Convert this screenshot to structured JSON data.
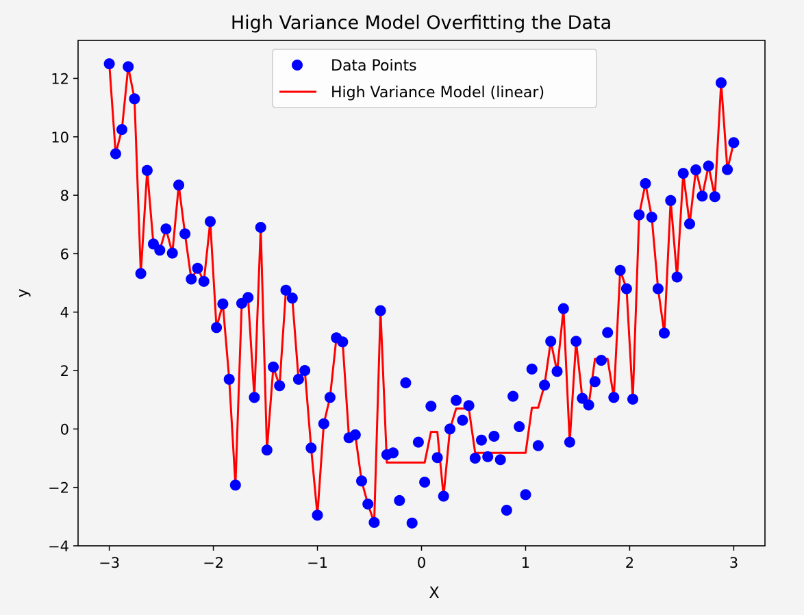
{
  "chart_data": {
    "type": "scatter",
    "title": "High Variance Model Overfitting the Data",
    "xlabel": "X",
    "ylabel": "y",
    "xlim": [
      -3.3,
      3.3
    ],
    "ylim": [
      -4,
      13.3
    ],
    "xticks": [
      -3,
      -2,
      -1,
      0,
      1,
      2,
      3
    ],
    "xtick_labels": [
      "−3",
      "−2",
      "−1",
      "0",
      "1",
      "2",
      "3"
    ],
    "yticks": [
      -4,
      -2,
      0,
      2,
      4,
      6,
      8,
      10,
      12
    ],
    "ytick_labels": [
      "−4",
      "−2",
      "0",
      "2",
      "4",
      "6",
      "8",
      "10",
      "12"
    ],
    "grid": false,
    "legend_position": "top-center",
    "x": [
      -3.0,
      -2.939,
      -2.879,
      -2.818,
      -2.758,
      -2.697,
      -2.636,
      -2.576,
      -2.515,
      -2.455,
      -2.394,
      -2.333,
      -2.273,
      -2.212,
      -2.152,
      -2.091,
      -2.03,
      -1.97,
      -1.909,
      -1.848,
      -1.788,
      -1.727,
      -1.667,
      -1.606,
      -1.545,
      -1.485,
      -1.424,
      -1.364,
      -1.303,
      -1.242,
      -1.182,
      -1.121,
      -1.061,
      -1.0,
      -0.939,
      -0.879,
      -0.818,
      -0.758,
      -0.697,
      -0.636,
      -0.576,
      -0.515,
      -0.455,
      -0.394,
      -0.333,
      -0.273,
      -0.212,
      -0.152,
      -0.091,
      -0.03,
      0.03,
      0.091,
      0.152,
      0.212,
      0.273,
      0.333,
      0.394,
      0.455,
      0.515,
      0.576,
      0.636,
      0.697,
      0.758,
      0.818,
      0.879,
      0.939,
      1.0,
      1.061,
      1.121,
      1.182,
      1.242,
      1.303,
      1.364,
      1.424,
      1.485,
      1.545,
      1.606,
      1.667,
      1.727,
      1.788,
      1.848,
      1.909,
      1.97,
      2.03,
      2.091,
      2.152,
      2.212,
      2.273,
      2.333,
      2.394,
      2.455,
      2.515,
      2.576,
      2.636,
      2.697,
      2.758,
      2.818,
      2.879,
      2.939,
      3.0
    ],
    "series": [
      {
        "name": "Data Points",
        "kind": "scatter",
        "color": "#0000ff",
        "y": [
          12.5,
          9.42,
          10.25,
          12.4,
          11.3,
          5.32,
          8.85,
          6.33,
          6.12,
          6.85,
          6.02,
          8.35,
          6.68,
          5.13,
          5.5,
          5.05,
          7.1,
          3.47,
          4.28,
          1.7,
          -1.92,
          4.3,
          4.5,
          1.08,
          6.9,
          -0.72,
          2.12,
          1.48,
          4.75,
          4.48,
          1.7,
          2.0,
          -0.65,
          -2.95,
          0.18,
          1.08,
          3.12,
          2.98,
          -0.3,
          -0.2,
          -1.78,
          -2.57,
          -3.2,
          4.05,
          -0.88,
          -0.82,
          -2.45,
          1.58,
          -3.22,
          -0.45,
          -1.82,
          0.78,
          -0.98,
          -2.3,
          0.0,
          0.98,
          0.3,
          0.8,
          -1.0,
          -0.38,
          -0.95,
          -0.25,
          -1.05,
          -2.78,
          1.12,
          0.08,
          -2.25,
          2.05,
          -0.57,
          1.5,
          3.0,
          1.97,
          4.12,
          -0.45,
          3.0,
          1.05,
          0.82,
          1.62,
          2.35,
          3.3,
          1.08,
          5.43,
          4.8,
          1.02,
          7.33,
          8.4,
          7.25,
          4.8,
          3.28,
          7.82,
          5.2,
          8.75,
          7.02,
          8.87,
          7.97,
          9.0,
          7.95,
          11.85,
          8.88,
          9.8
        ]
      },
      {
        "name": "High Variance Model (linear)",
        "kind": "line",
        "color": "#ff0000",
        "y": [
          12.5,
          9.42,
          10.25,
          12.4,
          11.3,
          5.32,
          8.85,
          6.33,
          6.12,
          6.85,
          6.02,
          8.35,
          6.68,
          5.13,
          5.5,
          5.05,
          7.1,
          3.47,
          4.28,
          1.7,
          -1.92,
          4.3,
          4.5,
          1.08,
          6.9,
          -0.72,
          2.12,
          1.48,
          4.75,
          4.48,
          1.7,
          2.0,
          -0.65,
          -2.95,
          0.18,
          1.08,
          3.12,
          2.98,
          -0.3,
          -0.2,
          -1.78,
          -2.57,
          -3.2,
          4.05,
          -1.15,
          -1.15,
          -1.15,
          -1.15,
          -1.15,
          -1.15,
          -1.15,
          -0.1,
          -0.1,
          -2.3,
          0.0,
          0.7,
          0.7,
          0.7,
          -0.82,
          -0.82,
          -0.82,
          -0.82,
          -0.82,
          -0.82,
          -0.82,
          -0.82,
          -0.82,
          0.73,
          0.73,
          1.5,
          3.0,
          1.97,
          4.12,
          -0.45,
          3.0,
          1.05,
          0.82,
          2.4,
          2.4,
          2.4,
          1.08,
          5.43,
          4.8,
          1.02,
          7.33,
          8.4,
          7.25,
          4.8,
          3.28,
          7.82,
          5.2,
          8.75,
          7.02,
          8.87,
          7.97,
          9.0,
          7.95,
          11.85,
          8.88,
          9.8
        ]
      }
    ]
  }
}
